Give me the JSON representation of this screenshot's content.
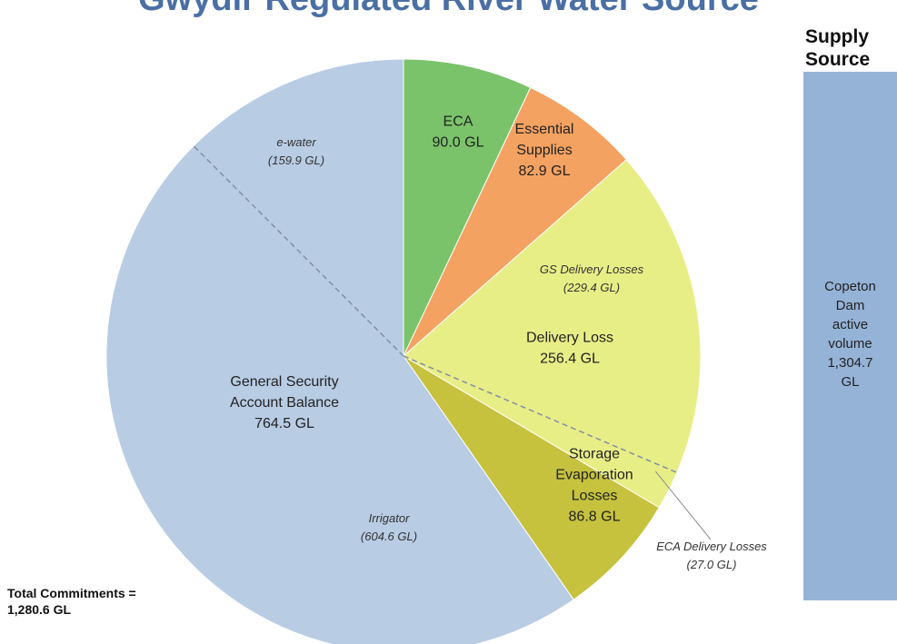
{
  "title": "Gwydir Regulated River Water Source",
  "supply": {
    "header_line1": "Supply",
    "header_line2": "Source",
    "label_lines": [
      "Copeton",
      "Dam",
      "active",
      "volume",
      "1,304.7",
      "GL"
    ]
  },
  "total": {
    "line1": "Total Commitments =",
    "line2": "1,280.6 GL"
  },
  "chart_data": {
    "type": "pie",
    "title": "Gwydir Regulated River Water Source",
    "slices": [
      {
        "label_lines": [
          "ECA",
          "90.0 GL"
        ],
        "value": 90.0,
        "color": "#7ac36a"
      },
      {
        "label_lines": [
          "Essential",
          "Supplies",
          "82.9 GL"
        ],
        "value": 82.9,
        "color": "#f4a261"
      },
      {
        "label_lines": [
          "Delivery Loss",
          "256.4 GL"
        ],
        "value": 256.4,
        "color": "#e8ee86"
      },
      {
        "label_lines": [
          "Storage",
          "Evaporation",
          "Losses",
          "86.8 GL"
        ],
        "value": 86.8,
        "color": "#c6c23e"
      },
      {
        "label_lines": [
          "General Security",
          "Account Balance",
          "764.5 GL"
        ],
        "value": 764.5,
        "color": "#b8cce4"
      }
    ],
    "sub_components": [
      {
        "label_lines": [
          "e-water",
          "(159.9 GL)"
        ],
        "value": 159.9,
        "parent": "General Security Account Balance"
      },
      {
        "label_lines": [
          "Irrigator",
          "(604.6 GL)"
        ],
        "value": 604.6,
        "parent": "General Security Account Balance"
      },
      {
        "label_lines": [
          "GS Delivery Losses",
          "(229.4 GL)"
        ],
        "value": 229.4,
        "parent": "Delivery Loss"
      },
      {
        "label_lines": [
          "ECA Delivery Losses",
          "(27.0 GL)"
        ],
        "value": 27.0,
        "parent": "Delivery Loss"
      }
    ],
    "supply_source": {
      "label": "Copeton Dam active volume",
      "value": 1304.7,
      "unit": "GL"
    },
    "total_commitments": 1280.6
  }
}
